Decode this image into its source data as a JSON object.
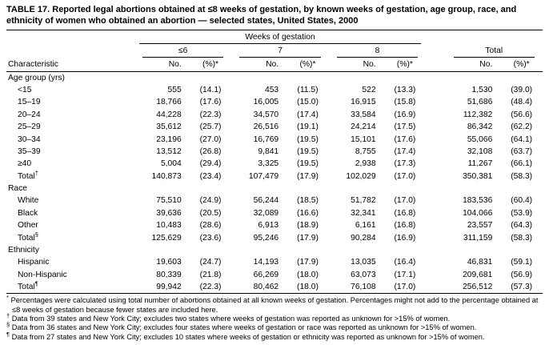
{
  "table": {
    "title": "TABLE 17. Reported legal abortions obtained at ≤8 weeks of gestation, by known weeks of gestation, age group, race, and ethnicity of women who obtained an abortion — selected states, United States, 2000",
    "weeks_header": "Weeks of gestation",
    "characteristic_header": "Characteristic",
    "col_groups": [
      "≤6",
      "7",
      "8",
      "Total"
    ],
    "sub_headers": [
      "No.",
      "(%)*"
    ],
    "sections": [
      {
        "label": "Age group (yrs)",
        "rows": [
          {
            "label": "<15",
            "values": [
              "555",
              "(14.1)",
              "453",
              "(11.5)",
              "522",
              "(13.3)",
              "1,530",
              "(39.0)"
            ]
          },
          {
            "label": "15–19",
            "values": [
              "18,766",
              "(17.6)",
              "16,005",
              "(15.0)",
              "16,915",
              "(15.8)",
              "51,686",
              "(48.4)"
            ]
          },
          {
            "label": "20–24",
            "values": [
              "44,228",
              "(22.3)",
              "34,570",
              "(17.4)",
              "33,584",
              "(16.9)",
              "112,382",
              "(56.6)"
            ]
          },
          {
            "label": "25–29",
            "values": [
              "35,612",
              "(25.7)",
              "26,516",
              "(19.1)",
              "24,214",
              "(17.5)",
              "86,342",
              "(62.2)"
            ]
          },
          {
            "label": "30–34",
            "values": [
              "23,196",
              "(27.0)",
              "16,769",
              "(19.5)",
              "15,101",
              "(17.6)",
              "55,066",
              "(64.1)"
            ]
          },
          {
            "label": "35–39",
            "values": [
              "13,512",
              "(26.8)",
              "9,841",
              "(19.5)",
              "8,755",
              "(17.4)",
              "32,108",
              "(63.7)"
            ]
          },
          {
            "label": "≥40",
            "values": [
              "5,004",
              "(29.4)",
              "3,325",
              "(19.5)",
              "2,938",
              "(17.3)",
              "11,267",
              "(66.1)"
            ]
          },
          {
            "label": "Total",
            "marker": "†",
            "values": [
              "140,873",
              "(23.4)",
              "107,479",
              "(17.9)",
              "102,029",
              "(17.0)",
              "350,381",
              "(58.3)"
            ]
          }
        ]
      },
      {
        "label": "Race",
        "rows": [
          {
            "label": "White",
            "values": [
              "75,510",
              "(24.9)",
              "56,244",
              "(18.5)",
              "51,782",
              "(17.0)",
              "183,536",
              "(60.4)"
            ]
          },
          {
            "label": "Black",
            "values": [
              "39,636",
              "(20.5)",
              "32,089",
              "(16.6)",
              "32,341",
              "(16.8)",
              "104,066",
              "(53.9)"
            ]
          },
          {
            "label": "Other",
            "values": [
              "10,483",
              "(28.6)",
              "6,913",
              "(18.9)",
              "6,161",
              "(16.8)",
              "23,557",
              "(64.3)"
            ]
          },
          {
            "label": "Total",
            "marker": "§",
            "values": [
              "125,629",
              "(23.6)",
              "95,246",
              "(17.9)",
              "90,284",
              "(16.9)",
              "311,159",
              "(58.3)"
            ]
          }
        ]
      },
      {
        "label": "Ethnicity",
        "rows": [
          {
            "label": "Hispanic",
            "values": [
              "19,603",
              "(24.7)",
              "14,193",
              "(17.9)",
              "13,035",
              "(16.4)",
              "46,831",
              "(59.1)"
            ]
          },
          {
            "label": "Non-Hispanic",
            "values": [
              "80,339",
              "(21.8)",
              "66,269",
              "(18.0)",
              "63,073",
              "(17.1)",
              "209,681",
              "(56.9)"
            ]
          },
          {
            "label": "Total",
            "marker": "¶",
            "values": [
              "99,942",
              "(22.3)",
              "80,462",
              "(18.0)",
              "76,108",
              "(17.0)",
              "256,512",
              "(57.3)"
            ]
          }
        ]
      }
    ],
    "footnotes": [
      {
        "marker": "*",
        "text": "Percentages were calculated using total number of abortions obtained at all known weeks of gestation. Percentages might not add to the percentage obtained at ≤8 weeks of gestation because fewer states are included here."
      },
      {
        "marker": "†",
        "text": "Data from 39 states and New York City; excludes two states where weeks of gestation was reported as unknown for >15% of women."
      },
      {
        "marker": "§",
        "text": "Data from 36 states and New York City; excludes four states where weeks of gestation or race was reported as unknown for >15% of women."
      },
      {
        "marker": "¶",
        "text": "Data from 27 states and New York City; excludes 10 states where weeks of gestation or ethnicity was reported as unknown for >15% of women."
      }
    ]
  }
}
